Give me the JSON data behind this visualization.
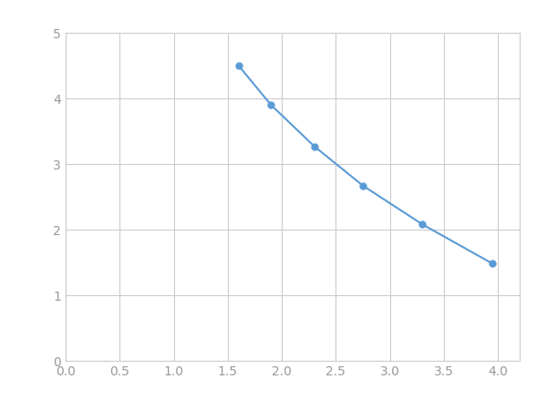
{
  "x": [
    1.6,
    1.9,
    2.3,
    2.75,
    3.3,
    3.95
  ],
  "y": [
    4.5,
    3.9,
    3.27,
    2.67,
    2.08,
    1.48
  ],
  "line_color": "#5B9BD5",
  "marker_color": "#5B9BD5",
  "marker_style": "o",
  "marker_size": 5,
  "line_width": 1.5,
  "xlim": [
    0.0,
    4.2
  ],
  "ylim": [
    0,
    5
  ],
  "xticks": [
    0.0,
    0.5,
    1.0,
    1.5,
    2.0,
    2.5,
    3.0,
    3.5,
    4.0
  ],
  "yticks": [
    0,
    1,
    2,
    3,
    4,
    5
  ],
  "grid": true,
  "grid_color": "#CCCCCC",
  "grid_linestyle": "-",
  "grid_linewidth": 0.8,
  "background_color": "#FFFFFF",
  "tick_labelsize": 10,
  "tick_color": "#999999",
  "spine_color": "#CCCCCC"
}
